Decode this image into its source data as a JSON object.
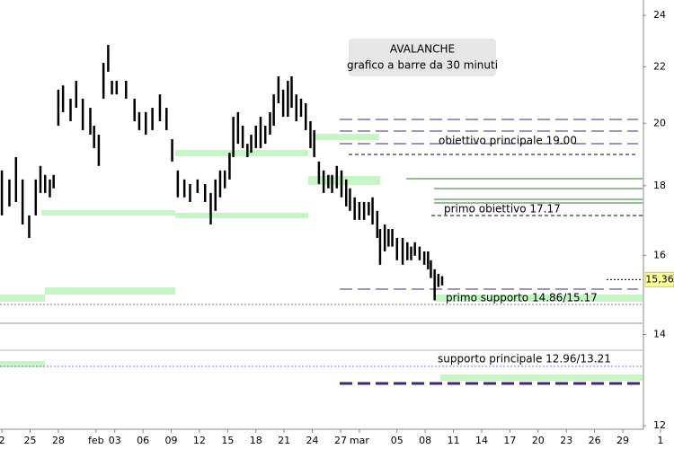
{
  "chart_data": {
    "type": "range-bar",
    "title": "AVALANCHE",
    "subtitle": "grafico a barre da 30 minuti",
    "annotations": [
      "obiettivo principale 19.00",
      "primo obiettivo 17.17",
      "primo supporto 14.86/15.17",
      "supporto principale 12.96/13.21"
    ],
    "last_price": {
      "value": 15.36,
      "label": "15,36"
    },
    "color": "#000000",
    "log_y": true,
    "grid": false,
    "x": [
      0.0,
      0.8,
      1.5,
      2.2,
      2.9,
      3.6,
      4.1,
      4.6,
      5.1,
      5.5,
      6.0,
      6.5,
      7.3,
      7.9,
      8.6,
      9.4,
      9.8,
      10.3,
      10.8,
      11.3,
      11.7,
      12.2,
      13.2,
      14.1,
      14.6,
      15.3,
      16.0,
      16.8,
      17.5,
      18.1,
      18.7,
      19.4,
      20.0,
      20.8,
      21.6,
      22.2,
      22.7,
      23.2,
      23.7,
      24.2,
      24.6,
      25.1,
      25.6,
      26.1,
      26.5,
      27.0,
      27.5,
      28.0,
      28.5,
      28.9,
      29.4,
      29.9,
      30.4,
      30.8,
      31.3,
      31.8,
      32.3,
      32.8,
      33.2,
      33.7,
      34.2,
      34.7,
      35.1,
      35.6,
      36.1,
      36.6,
      37.0,
      37.5,
      38.0,
      38.5,
      39.0,
      39.4,
      39.9,
      40.2,
      40.7,
      41.1,
      41.5,
      42.0,
      42.6,
      43.1,
      43.5,
      43.9,
      44.4,
      44.9,
      45.3,
      45.6,
      46.0,
      46.4,
      46.8
    ],
    "high": [
      18.47,
      18.19,
      18.89,
      18.19,
      17.12,
      18.19,
      18.61,
      18.33,
      18.19,
      18.33,
      21.17,
      21.32,
      20.85,
      21.49,
      20.85,
      20.53,
      19.92,
      19.62,
      22.15,
      22.83,
      21.49,
      21.49,
      21.49,
      20.85,
      20.38,
      20.38,
      20.53,
      21.0,
      20.53,
      19.47,
      18.47,
      18.19,
      18.05,
      18.19,
      18.05,
      17.78,
      18.19,
      18.47,
      18.47,
      19.03,
      20.22,
      20.38,
      19.92,
      19.32,
      19.62,
      19.92,
      20.22,
      19.92,
      20.38,
      21.0,
      21.65,
      21.17,
      21.49,
      21.65,
      21.0,
      20.85,
      20.69,
      20.07,
      19.77,
      18.75,
      18.47,
      18.33,
      18.33,
      18.61,
      18.47,
      18.19,
      17.92,
      17.65,
      17.51,
      17.51,
      17.51,
      17.65,
      17.25,
      16.73,
      16.86,
      16.73,
      16.73,
      16.48,
      16.48,
      16.36,
      16.24,
      16.36,
      16.24,
      16.11,
      16.11,
      15.87,
      15.63,
      15.51,
      15.45
    ],
    "low": [
      17.12,
      17.38,
      17.51,
      16.86,
      16.48,
      17.12,
      17.78,
      17.78,
      17.65,
      17.92,
      19.92,
      20.38,
      20.07,
      20.53,
      19.77,
      19.62,
      19.18,
      18.61,
      20.85,
      21.82,
      21.0,
      21.0,
      20.85,
      20.07,
      19.77,
      19.62,
      19.77,
      20.07,
      19.77,
      18.75,
      17.65,
      17.65,
      17.51,
      17.78,
      17.51,
      16.86,
      17.25,
      17.65,
      17.92,
      18.19,
      18.89,
      19.32,
      19.18,
      18.89,
      19.03,
      19.18,
      19.18,
      19.32,
      19.62,
      19.92,
      20.69,
      20.22,
      20.22,
      20.53,
      20.07,
      20.22,
      19.77,
      19.18,
      18.89,
      18.05,
      17.78,
      17.92,
      17.78,
      17.92,
      17.65,
      17.38,
      17.25,
      16.99,
      16.99,
      16.99,
      17.12,
      16.86,
      16.48,
      15.75,
      16.11,
      16.24,
      16.24,
      15.87,
      15.75,
      15.87,
      15.87,
      15.99,
      15.87,
      15.75,
      15.63,
      15.4,
      14.83,
      15.17,
      15.21
    ],
    "xlim": [
      -0.2,
      68.1
    ],
    "xticks": [
      {
        "value": 0,
        "label": "2"
      },
      {
        "value": 3,
        "label": "25"
      },
      {
        "value": 6,
        "label": "28"
      },
      {
        "value": 10,
        "label": "feb"
      },
      {
        "value": 12,
        "label": "03"
      },
      {
        "value": 15,
        "label": "06"
      },
      {
        "value": 18,
        "label": "09"
      },
      {
        "value": 21,
        "label": "12"
      },
      {
        "value": 24,
        "label": "15"
      },
      {
        "value": 27,
        "label": "18"
      },
      {
        "value": 30,
        "label": "21"
      },
      {
        "value": 33,
        "label": "24"
      },
      {
        "value": 36,
        "label": "27"
      },
      {
        "value": 38,
        "label": "mar"
      },
      {
        "value": 42,
        "label": "05"
      },
      {
        "value": 45,
        "label": "08"
      },
      {
        "value": 48,
        "label": "11"
      },
      {
        "value": 51,
        "label": "14"
      },
      {
        "value": 54,
        "label": "17"
      },
      {
        "value": 57,
        "label": "20"
      },
      {
        "value": 60,
        "label": "23"
      },
      {
        "value": 63,
        "label": "26"
      },
      {
        "value": 66,
        "label": "29"
      },
      {
        "value": 70,
        "label": "1"
      }
    ],
    "ylim": [
      11.93,
      24.63
    ],
    "yticks": [
      12,
      14,
      16,
      18,
      20,
      22,
      24
    ]
  }
}
